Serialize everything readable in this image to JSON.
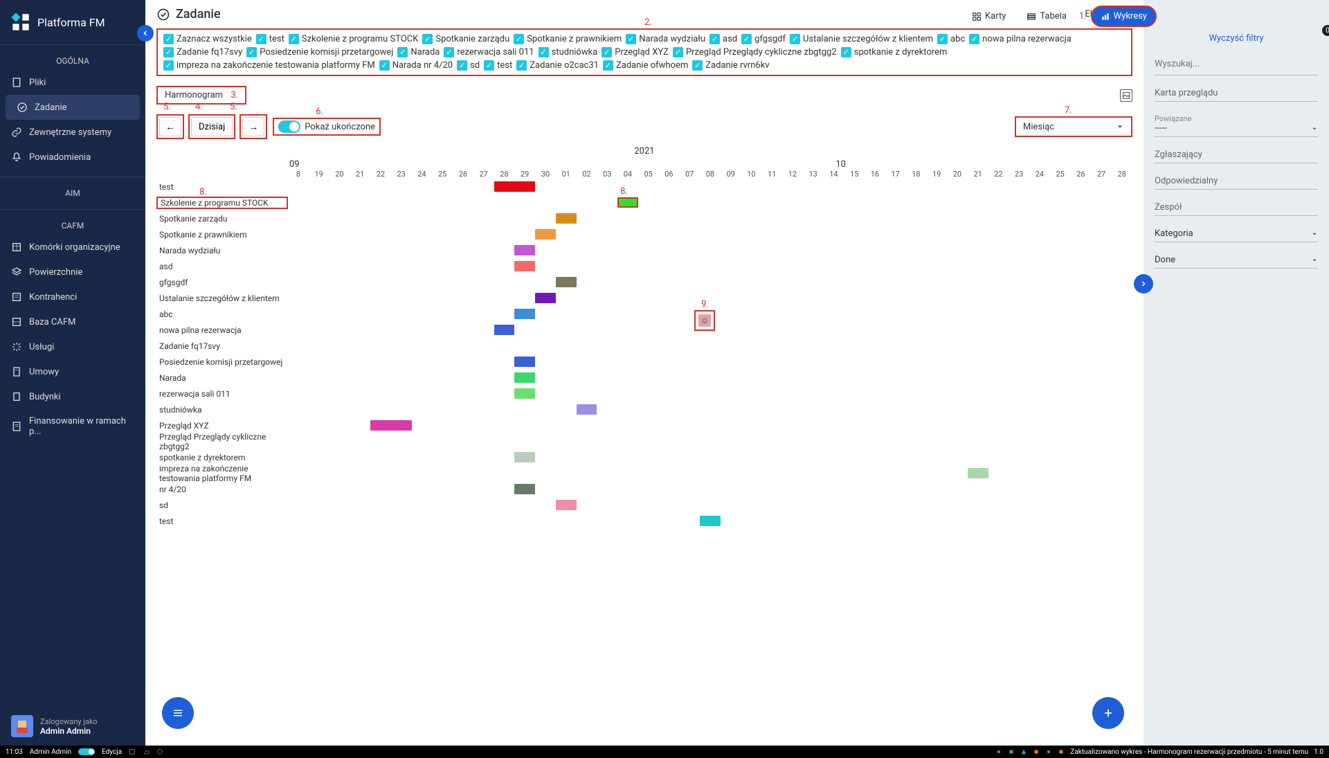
{
  "app": {
    "name": "Platforma FM"
  },
  "sidebar": {
    "sections": [
      {
        "title": "OGÓLNA",
        "items": [
          {
            "label": "Pliki",
            "icon": "file"
          },
          {
            "label": "Zadanie",
            "icon": "check",
            "active": true
          },
          {
            "label": "Zewnętrzne systemy",
            "icon": "link"
          },
          {
            "label": "Powiadomienia",
            "icon": "bell"
          }
        ]
      },
      {
        "title": "AIM",
        "items": []
      },
      {
        "title": "CAFM",
        "items": [
          {
            "label": "Komórki organizacyjne",
            "icon": "org"
          },
          {
            "label": "Powierzchnie",
            "icon": "layers"
          },
          {
            "label": "Kontrahenci",
            "icon": "contacts"
          },
          {
            "label": "Baza CAFM",
            "icon": "db"
          },
          {
            "label": "Usługi",
            "icon": "service"
          },
          {
            "label": "Umowy",
            "icon": "doc"
          },
          {
            "label": "Budynki",
            "icon": "building"
          },
          {
            "label": "Finansowanie w ramach p...",
            "icon": "finance"
          }
        ]
      }
    ],
    "user": {
      "logged_in_as": "Zalogowany jako",
      "name": "Admin Admin"
    }
  },
  "header": {
    "title": "Zadanie",
    "export": "Eksportuj",
    "views": {
      "cards": "Karty",
      "table": "Tabela",
      "charts": "Wykresy"
    }
  },
  "filters": {
    "items": [
      "Zaznacz wszystkie",
      "test",
      "Szkolenie z programu STOCK",
      "Spotkanie zarządu",
      "Spotkanie z prawnikiem",
      "Narada wydziału",
      "asd",
      "gfgsgdf",
      "Ustalanie szczegółów z klientem",
      "abc",
      "nowa pilna rezerwacja",
      "Zadanie fq17svy",
      "Posiedzenie komisji przetargowej",
      "Narada",
      "rezerwacja sali 011",
      "studniówka",
      "Przegląd XYZ",
      "Przegląd Przeglądy cykliczne zbgtgg2",
      "spotkanie z dyrektorem",
      "impreza na zakończenie testowania platformy FM",
      "Narada nr 4/20",
      "sd",
      "test",
      "Zadanie o2cac31",
      "Zadanie ofwhoem",
      "Zadanie rvrn6kv"
    ]
  },
  "subheader": {
    "harmonogram": "Harmonogram"
  },
  "toolbar": {
    "today": "Dzisiaj",
    "show_done": "Pokaż ukończone",
    "period": "Miesiąc"
  },
  "annot": {
    "a1": "1.",
    "a2": "2.",
    "a3": "3.",
    "a4": "4.",
    "a5l": "5.",
    "a5r": "5.",
    "a6": "6.",
    "a7": "7.",
    "a8l": "8.",
    "a8r": "8.",
    "a9": "9."
  },
  "gantt": {
    "year": "2021",
    "months": [
      "09",
      "10"
    ],
    "day_labels": [
      "8",
      "19",
      "20",
      "21",
      "22",
      "23",
      "24",
      "25",
      "26",
      "27",
      "28",
      "29",
      "30",
      "01",
      "02",
      "03",
      "04",
      "05",
      "06",
      "07",
      "08",
      "09",
      "10",
      "11",
      "12",
      "13",
      "14",
      "15",
      "16",
      "17",
      "18",
      "19",
      "20",
      "21",
      "22",
      "23",
      "24",
      "25",
      "26",
      "27",
      "28"
    ],
    "rows": [
      {
        "label": "test",
        "bars": [
          {
            "start": 10,
            "span": 2,
            "color": "#e30613"
          }
        ],
        "label_hl": false
      },
      {
        "label": "Szkolenie z programu STOCK",
        "bars": [
          {
            "start": 16,
            "span": 1,
            "color": "#2ee02e",
            "hl": true
          }
        ],
        "label_hl": true
      },
      {
        "label": "Spotkanie zarządu",
        "bars": [
          {
            "start": 13,
            "span": 1,
            "color": "#d88b1d"
          }
        ]
      },
      {
        "label": "Spotkanie z prawnikiem",
        "bars": [
          {
            "start": 12,
            "span": 1,
            "color": "#f0993c"
          }
        ]
      },
      {
        "label": "Narada wydziału",
        "bars": [
          {
            "start": 11,
            "span": 1,
            "color": "#c455d8"
          }
        ]
      },
      {
        "label": "asd",
        "bars": [
          {
            "start": 11,
            "span": 1,
            "color": "#f46a6a"
          }
        ]
      },
      {
        "label": "gfgsgdf",
        "bars": [
          {
            "start": 13,
            "span": 1,
            "color": "#7a7a5a"
          }
        ]
      },
      {
        "label": "Ustalanie szczegółów z klientem",
        "bars": [
          {
            "start": 12,
            "span": 1,
            "color": "#7118bd"
          }
        ]
      },
      {
        "label": "abc",
        "bars": [
          {
            "start": 11,
            "span": 1,
            "color": "#3a8fd8"
          }
        ]
      },
      {
        "label": "nowa pilna rezerwacja",
        "bars": [
          {
            "start": 10,
            "span": 1,
            "color": "#3a5fd8"
          }
        ]
      },
      {
        "label": "Zadanie fq17svy",
        "bars": []
      },
      {
        "label": "Posiedzenie komisji przetargowej",
        "bars": [
          {
            "start": 11,
            "span": 1,
            "color": "#3a5fd8"
          }
        ]
      },
      {
        "label": "Narada",
        "bars": [
          {
            "start": 11,
            "span": 1,
            "color": "#3ad86a"
          }
        ]
      },
      {
        "label": "rezerwacja sali 011",
        "bars": [
          {
            "start": 11,
            "span": 1,
            "color": "#6ae06a"
          }
        ]
      },
      {
        "label": "studniówka",
        "bars": [
          {
            "start": 14,
            "span": 1,
            "color": "#9a8fe0"
          }
        ]
      },
      {
        "label": "Przegląd XYZ",
        "bars": [
          {
            "start": 4,
            "span": 2,
            "color": "#d83aa8"
          }
        ]
      },
      {
        "label": "Przegląd Przeglądy cykliczne zbgtgg2",
        "bars": []
      },
      {
        "label": "spotkanie z dyrektorem",
        "bars": [
          {
            "start": 11,
            "span": 1,
            "color": "#bcccbc"
          }
        ]
      },
      {
        "label": "impreza na zakończenie testowania platformy FM",
        "bars": [
          {
            "start": 33,
            "span": 1,
            "color": "#a8d8a8"
          }
        ]
      },
      {
        "label": "nr 4/20",
        "bars": [
          {
            "start": 11,
            "span": 1,
            "color": "#6a7a6a"
          }
        ]
      },
      {
        "label": "sd",
        "bars": [
          {
            "start": 13,
            "span": 1,
            "color": "#f08fa8"
          }
        ]
      },
      {
        "label": "test",
        "bars": [
          {
            "start": 20,
            "span": 1,
            "color": "#1ec8c8"
          }
        ]
      }
    ],
    "marker9": {
      "col": 20
    }
  },
  "right": {
    "clear_filters": "Wyczyść filtry",
    "search_placeholder": "Wyszukaj...",
    "card": "Karta przeglądu",
    "related_label": "Powiązane",
    "related_value": "-----",
    "reporter": "Zgłaszający",
    "responsible": "Odpowiedzialny",
    "team": "Zespół",
    "category": "Kategoria",
    "done": "Done",
    "badge": "0"
  },
  "statusbar": {
    "time": "11:03",
    "user": "Admin Admin",
    "mode": "Edycja",
    "msg": "Zaktualizowano wykres - Harmonogram rezerwacji przedmiotu - 5 minut temu",
    "ver": "1.0"
  }
}
